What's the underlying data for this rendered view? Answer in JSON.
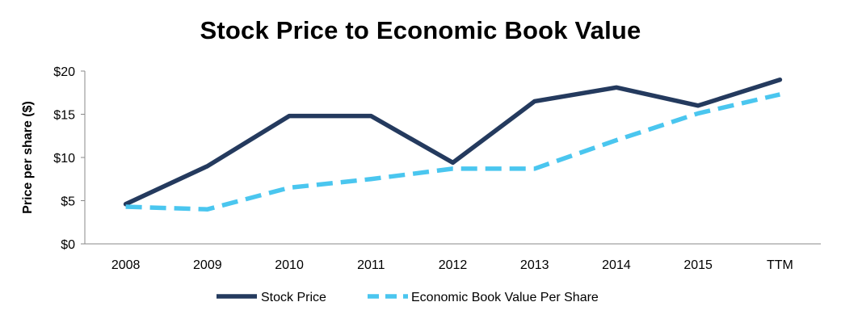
{
  "chart_data": {
    "type": "line",
    "title": "Stock Price to Economic Book Value",
    "xlabel": "",
    "ylabel": "Price per share ($)",
    "categories": [
      "2008",
      "2009",
      "2010",
      "2011",
      "2012",
      "2013",
      "2014",
      "2015",
      "TTM"
    ],
    "ylim": [
      0,
      20
    ],
    "yticks": [
      0,
      5,
      10,
      15,
      20
    ],
    "ytick_labels": [
      "$0",
      "$5",
      "$10",
      "$15",
      "$20"
    ],
    "grid": false,
    "legend_position": "bottom",
    "series": [
      {
        "name": "Stock Price",
        "values": [
          4.6,
          9.0,
          14.8,
          14.8,
          9.4,
          16.5,
          18.1,
          16.0,
          19.0
        ],
        "color": "#243a5e",
        "style": "solid"
      },
      {
        "name": "Economic Book Value Per Share",
        "values": [
          4.3,
          4.0,
          6.5,
          7.5,
          8.7,
          8.7,
          12.0,
          15.1,
          17.3
        ],
        "color": "#4ac6ef",
        "style": "dashed"
      }
    ]
  }
}
